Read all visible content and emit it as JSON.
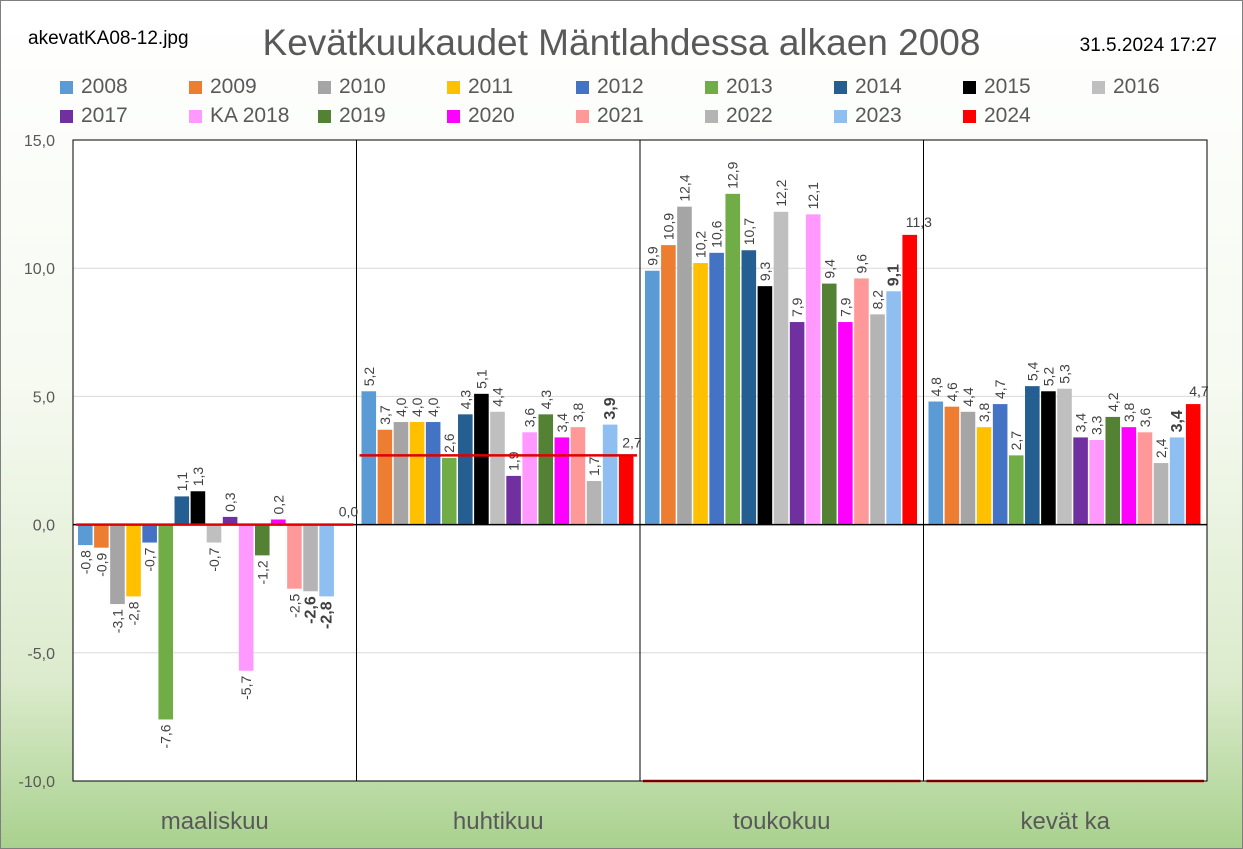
{
  "filename": "akevatKA08-12.jpg",
  "title": "Kevätkuukaudet Mäntlahdessa alkaen 2008",
  "timestamp": "31.5.2024 17:27",
  "colors": {
    "grid": "#d9d9d9",
    "divider": "#000000",
    "reference_line": "#e00000",
    "axis_text": "#595959"
  },
  "chart_data": {
    "type": "bar",
    "title": "Kevätkuukaudet Mäntlahdessa alkaen 2008",
    "categories": [
      "maaliskuu",
      "huhtikuu",
      "toukokuu",
      "kevät ka"
    ],
    "ylim": [
      -10,
      15
    ],
    "yticks": [
      "15,0",
      "10,0",
      "5,0",
      "0,0",
      "-5,0",
      "-10,0"
    ],
    "ytick_values": [
      15,
      10,
      5,
      0,
      -5,
      -10
    ],
    "grid": true,
    "legend_position": "top",
    "series": [
      {
        "name": "2008",
        "color": "#5b9bd5",
        "values": [
          -0.8,
          5.2,
          9.9,
          4.8
        ],
        "labels": [
          "-0,8",
          "5,2",
          "9,9",
          "4,8"
        ]
      },
      {
        "name": "2009",
        "color": "#ed7d31",
        "values": [
          -0.9,
          3.7,
          10.9,
          4.6
        ],
        "labels": [
          "-0,9",
          "3,7",
          "10,9",
          "4,6"
        ]
      },
      {
        "name": "2010",
        "color": "#a5a5a5",
        "values": [
          -3.1,
          4.0,
          12.4,
          4.4
        ],
        "labels": [
          "-3,1",
          "4,0",
          "12,4",
          "4,4"
        ]
      },
      {
        "name": "2011",
        "color": "#ffc000",
        "values": [
          -2.8,
          4.0,
          10.2,
          3.8
        ],
        "labels": [
          "-2,8",
          "4,0",
          "10,2",
          "3,8"
        ]
      },
      {
        "name": "2012",
        "color": "#4472c4",
        "values": [
          -0.7,
          4.0,
          10.6,
          4.7
        ],
        "labels": [
          "-0,7",
          "4,0",
          "10,6",
          "4,7"
        ]
      },
      {
        "name": "2013",
        "color": "#70ad47",
        "values": [
          -7.6,
          2.6,
          12.9,
          2.7
        ],
        "labels": [
          "-7,6",
          "2,6",
          "12,9",
          "2,7"
        ]
      },
      {
        "name": "2014",
        "color": "#255e91",
        "values": [
          1.1,
          4.3,
          10.7,
          5.4
        ],
        "labels": [
          "1,1",
          "4,3",
          "10,7",
          "5,4"
        ]
      },
      {
        "name": "2015",
        "color": "#000000",
        "values": [
          1.3,
          5.1,
          9.3,
          5.2
        ],
        "labels": [
          "1,3",
          "5,1",
          "9,3",
          "5,2"
        ]
      },
      {
        "name": "2016",
        "color": "#bfbfbf",
        "values": [
          -0.7,
          4.4,
          12.2,
          5.3
        ],
        "labels": [
          "-0,7",
          "4,4",
          "12,2",
          "5,3"
        ]
      },
      {
        "name": "2017",
        "color": "#7030a0",
        "values": [
          0.3,
          1.9,
          7.9,
          3.4
        ],
        "labels": [
          "0,3",
          "1,9",
          "7,9",
          "3,4"
        ]
      },
      {
        "name": "KA 2018",
        "color": "#ff99ff",
        "values": [
          -5.7,
          3.6,
          12.1,
          3.3
        ],
        "labels": [
          "-5,7",
          "3,6",
          "12,1",
          "3,3"
        ]
      },
      {
        "name": "2019",
        "color": "#548235",
        "values": [
          -1.2,
          4.3,
          9.4,
          4.2
        ],
        "labels": [
          "-1,2",
          "4,3",
          "9,4",
          "4,2"
        ]
      },
      {
        "name": "2020",
        "color": "#ff00ff",
        "values": [
          0.2,
          3.4,
          7.9,
          3.8
        ],
        "labels": [
          "0,2",
          "3,4",
          "7,9",
          "3,8"
        ]
      },
      {
        "name": "2021",
        "color": "#ff9999",
        "values": [
          -2.5,
          3.8,
          9.6,
          3.6
        ],
        "labels": [
          "-2,5",
          "3,8",
          "9,6",
          "3,6"
        ]
      },
      {
        "name": "2022",
        "color": "#b4b4b4",
        "values": [
          -2.6,
          1.7,
          8.2,
          2.4
        ],
        "labels": [
          "-2,6",
          "1,7",
          "8,2",
          "2,4"
        ]
      },
      {
        "name": "2023",
        "color": "#8fbef0",
        "values": [
          -2.8,
          3.9,
          9.1,
          3.4
        ],
        "labels": [
          "-2,8",
          "3,9",
          "9,1",
          "3,4"
        ]
      },
      {
        "name": "2024",
        "color": "#ff0000",
        "values": [
          0.0,
          2.7,
          11.3,
          4.7
        ],
        "labels": [
          "0,0",
          "2,7",
          "11,3",
          "4,7"
        ]
      }
    ],
    "reference_lines": [
      {
        "category": "maaliskuu",
        "value": 0.0
      },
      {
        "category": "huhtikuu",
        "value": 2.7
      },
      {
        "category": "toukokuu",
        "value": -10.0
      },
      {
        "category": "kevät ka",
        "value": -10.0
      }
    ]
  }
}
